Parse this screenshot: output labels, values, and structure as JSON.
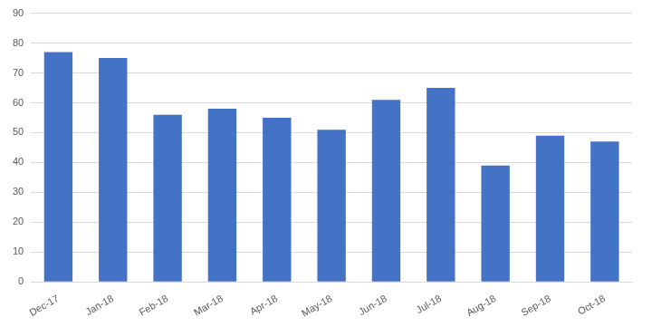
{
  "chart_data": {
    "type": "bar",
    "categories": [
      "Dec-17",
      "Jan-18",
      "Feb-18",
      "Mar-18",
      "Apr-18",
      "May-18",
      "Jun-18",
      "Jul-18",
      "Aug-18",
      "Sep-18",
      "Oct-18"
    ],
    "values": [
      77,
      75,
      56,
      58,
      55,
      51,
      61,
      65,
      39,
      49,
      47
    ],
    "color": "#4472c4",
    "ylim": [
      0,
      90
    ],
    "yticks": [
      0,
      10,
      20,
      30,
      40,
      50,
      60,
      70,
      80,
      90
    ],
    "grid": true
  }
}
